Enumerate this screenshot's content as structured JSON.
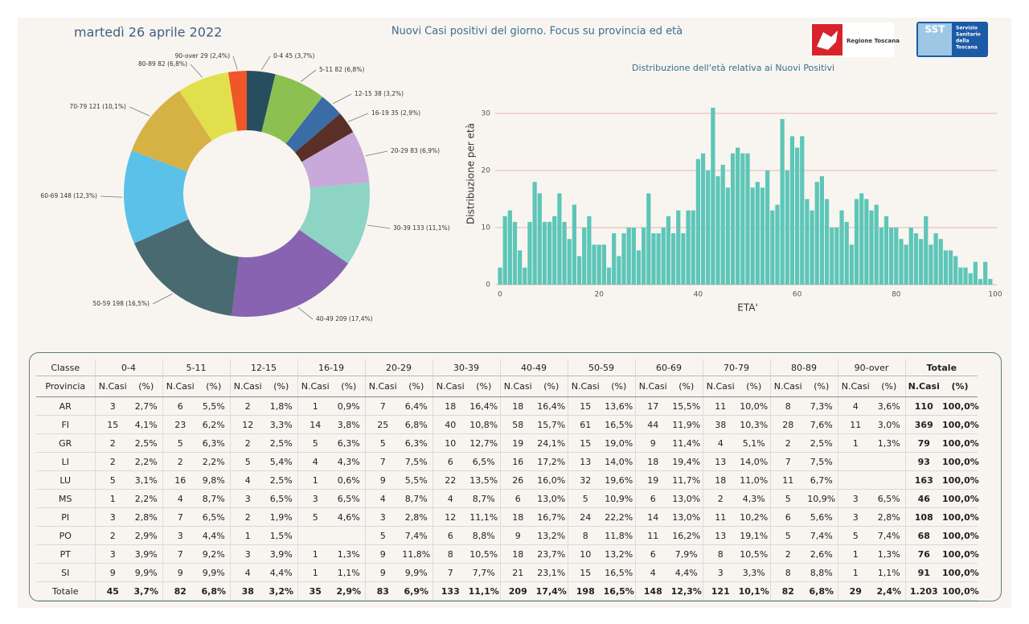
{
  "header": {
    "date": "martedì 26 aprile 2022",
    "title": "Nuovi Casi positivi del giorno. Focus su provincia ed età",
    "logo_left": "Regione Toscana",
    "logo_right_short": "SST",
    "logo_right": [
      "Servizio",
      "Sanitario",
      "della",
      "Toscana"
    ]
  },
  "chart_data": [
    {
      "type": "pie",
      "donut": true,
      "categories": [
        "0-4",
        "5-11",
        "12-15",
        "16-19",
        "20-29",
        "30-39",
        "40-49",
        "50-59",
        "60-69",
        "70-79",
        "80-89",
        "90-over"
      ],
      "values": [
        45,
        82,
        38,
        35,
        83,
        133,
        209,
        198,
        148,
        121,
        82,
        29
      ],
      "value_labels": [
        "45 (3,7%)",
        "82 (6,8%)",
        "38 (3,2%)",
        "35 (2,9%)",
        "83 (6,9%)",
        "133 (11,1%)",
        "209 (17,4%)",
        "198 (16,5%)",
        "148 (12,3%)",
        "121 (10,1%)",
        "82 (6,8%)",
        "29 (2,4%)"
      ],
      "colors": [
        "#264e5e",
        "#8cc152",
        "#3a6ca6",
        "#5a2f28",
        "#c9a9d9",
        "#8ed4c4",
        "#8863b1",
        "#4a6a72",
        "#5bc1e9",
        "#d6b245",
        "#e1e04c",
        "#ef5629"
      ]
    },
    {
      "type": "bar",
      "title": "Distribuzione dell'età relativa ai Nuovi Positivi",
      "xlabel": "ETA'",
      "ylabel": "Distribuzione per età",
      "x": [
        0,
        1,
        2,
        3,
        4,
        5,
        6,
        7,
        8,
        9,
        10,
        11,
        12,
        13,
        14,
        15,
        16,
        17,
        18,
        19,
        20,
        21,
        22,
        23,
        24,
        25,
        26,
        27,
        28,
        29,
        30,
        31,
        32,
        33,
        34,
        35,
        36,
        37,
        38,
        39,
        40,
        41,
        42,
        43,
        44,
        45,
        46,
        47,
        48,
        49,
        50,
        51,
        52,
        53,
        54,
        55,
        56,
        57,
        58,
        59,
        60,
        61,
        62,
        63,
        64,
        65,
        66,
        67,
        68,
        69,
        70,
        71,
        72,
        73,
        74,
        75,
        76,
        77,
        78,
        79,
        80,
        81,
        82,
        83,
        84,
        85,
        86,
        87,
        88,
        89,
        90,
        91,
        92,
        93,
        94,
        95,
        96,
        97,
        98,
        99
      ],
      "values": [
        3,
        12,
        13,
        11,
        6,
        3,
        11,
        18,
        16,
        11,
        11,
        12,
        16,
        11,
        8,
        14,
        5,
        10,
        12,
        7,
        7,
        7,
        3,
        9,
        5,
        9,
        10,
        10,
        6,
        10,
        16,
        9,
        9,
        10,
        12,
        9,
        13,
        9,
        13,
        13,
        22,
        23,
        20,
        31,
        19,
        21,
        17,
        23,
        24,
        23,
        23,
        17,
        18,
        17,
        20,
        13,
        14,
        29,
        20,
        26,
        24,
        26,
        15,
        13,
        18,
        19,
        15,
        10,
        10,
        13,
        11,
        7,
        15,
        16,
        15,
        13,
        14,
        10,
        12,
        10,
        10,
        8,
        7,
        10,
        9,
        8,
        12,
        7,
        9,
        8,
        6,
        6,
        5,
        3,
        3,
        2,
        4,
        1,
        4,
        1
      ],
      "color": "#5dc6b8",
      "xlim": [
        0,
        100
      ],
      "xticks": [
        0,
        20,
        40,
        60,
        80,
        100
      ],
      "ylim": [
        0,
        33
      ],
      "yticks": [
        0,
        10,
        20,
        30
      ],
      "grid": true
    }
  ],
  "table": {
    "groups": [
      "Classe",
      "0-4",
      "5-11",
      "12-15",
      "16-19",
      "20-29",
      "30-39",
      "40-49",
      "50-59",
      "60-69",
      "70-79",
      "80-89",
      "90-over",
      "Totale"
    ],
    "subheader": [
      "Provincia",
      "N.Casi",
      "(%)",
      "N.Casi",
      "(%)",
      "N.Casi",
      "(%)",
      "N.Casi",
      "(%)",
      "N.Casi",
      "(%)",
      "N.Casi",
      "(%)",
      "N.Casi",
      "(%)",
      "N.Casi",
      "(%)",
      "N.Casi",
      "(%)",
      "N.Casi",
      "(%)",
      "N.Casi",
      "(%)",
      "N.Casi",
      "(%)",
      "N.Casi",
      "(%)"
    ],
    "rows": [
      [
        "AR",
        "3",
        "2,7%",
        "6",
        "5,5%",
        "2",
        "1,8%",
        "1",
        "0,9%",
        "7",
        "6,4%",
        "18",
        "16,4%",
        "18",
        "16,4%",
        "15",
        "13,6%",
        "17",
        "15,5%",
        "11",
        "10,0%",
        "8",
        "7,3%",
        "4",
        "3,6%",
        "110",
        "100,0%"
      ],
      [
        "FI",
        "15",
        "4,1%",
        "23",
        "6,2%",
        "12",
        "3,3%",
        "14",
        "3,8%",
        "25",
        "6,8%",
        "40",
        "10,8%",
        "58",
        "15,7%",
        "61",
        "16,5%",
        "44",
        "11,9%",
        "38",
        "10,3%",
        "28",
        "7,6%",
        "11",
        "3,0%",
        "369",
        "100,0%"
      ],
      [
        "GR",
        "2",
        "2,5%",
        "5",
        "6,3%",
        "2",
        "2,5%",
        "5",
        "6,3%",
        "5",
        "6,3%",
        "10",
        "12,7%",
        "19",
        "24,1%",
        "15",
        "19,0%",
        "9",
        "11,4%",
        "4",
        "5,1%",
        "2",
        "2,5%",
        "1",
        "1,3%",
        "79",
        "100,0%"
      ],
      [
        "LI",
        "2",
        "2,2%",
        "2",
        "2,2%",
        "5",
        "5,4%",
        "4",
        "4,3%",
        "7",
        "7,5%",
        "6",
        "6,5%",
        "16",
        "17,2%",
        "13",
        "14,0%",
        "18",
        "19,4%",
        "13",
        "14,0%",
        "7",
        "7,5%",
        null,
        null,
        "93",
        "100,0%"
      ],
      [
        "LU",
        "5",
        "3,1%",
        "16",
        "9,8%",
        "4",
        "2,5%",
        "1",
        "0,6%",
        "9",
        "5,5%",
        "22",
        "13,5%",
        "26",
        "16,0%",
        "32",
        "19,6%",
        "19",
        "11,7%",
        "18",
        "11,0%",
        "11",
        "6,7%",
        null,
        null,
        "163",
        "100,0%"
      ],
      [
        "MS",
        "1",
        "2,2%",
        "4",
        "8,7%",
        "3",
        "6,5%",
        "3",
        "6,5%",
        "4",
        "8,7%",
        "4",
        "8,7%",
        "6",
        "13,0%",
        "5",
        "10,9%",
        "6",
        "13,0%",
        "2",
        "4,3%",
        "5",
        "10,9%",
        "3",
        "6,5%",
        "46",
        "100,0%"
      ],
      [
        "PI",
        "3",
        "2,8%",
        "7",
        "6,5%",
        "2",
        "1,9%",
        "5",
        "4,6%",
        "3",
        "2,8%",
        "12",
        "11,1%",
        "18",
        "16,7%",
        "24",
        "22,2%",
        "14",
        "13,0%",
        "11",
        "10,2%",
        "6",
        "5,6%",
        "3",
        "2,8%",
        "108",
        "100,0%"
      ],
      [
        "PO",
        "2",
        "2,9%",
        "3",
        "4,4%",
        "1",
        "1,5%",
        null,
        null,
        "5",
        "7,4%",
        "6",
        "8,8%",
        "9",
        "13,2%",
        "8",
        "11,8%",
        "11",
        "16,2%",
        "13",
        "19,1%",
        "5",
        "7,4%",
        "5",
        "7,4%",
        "68",
        "100,0%"
      ],
      [
        "PT",
        "3",
        "3,9%",
        "7",
        "9,2%",
        "3",
        "3,9%",
        "1",
        "1,3%",
        "9",
        "11,8%",
        "8",
        "10,5%",
        "18",
        "23,7%",
        "10",
        "13,2%",
        "6",
        "7,9%",
        "8",
        "10,5%",
        "2",
        "2,6%",
        "1",
        "1,3%",
        "76",
        "100,0%"
      ],
      [
        "SI",
        "9",
        "9,9%",
        "9",
        "9,9%",
        "4",
        "4,4%",
        "1",
        "1,1%",
        "9",
        "9,9%",
        "7",
        "7,7%",
        "21",
        "23,1%",
        "15",
        "16,5%",
        "4",
        "4,4%",
        "3",
        "3,3%",
        "8",
        "8,8%",
        "1",
        "1,1%",
        "91",
        "100,0%"
      ],
      [
        "Totale",
        "45",
        "3,7%",
        "82",
        "6,8%",
        "38",
        "3,2%",
        "35",
        "2,9%",
        "83",
        "6,9%",
        "133",
        "11,1%",
        "209",
        "17,4%",
        "198",
        "16,5%",
        "148",
        "12,3%",
        "121",
        "10,1%",
        "82",
        "6,8%",
        "29",
        "2,4%",
        "1.203",
        "100,0%"
      ]
    ]
  }
}
